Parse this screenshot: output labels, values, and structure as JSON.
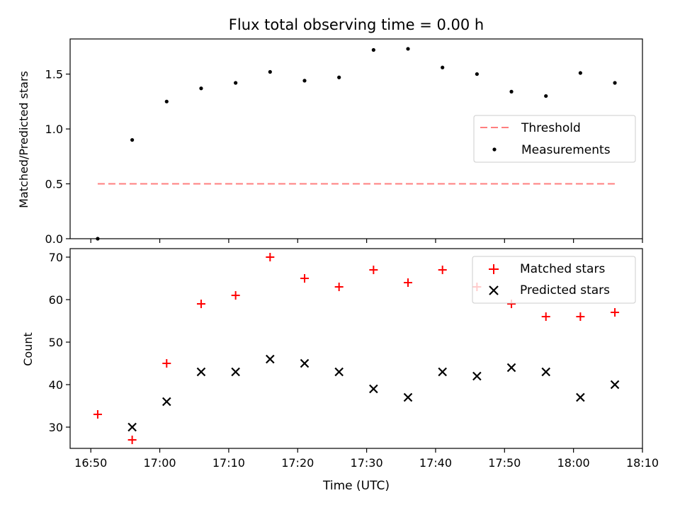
{
  "chart_data": [
    {
      "type": "scatter",
      "title": "Flux total observing time = 0.00 h",
      "ylabel": "Matched/Predicted stars",
      "ylim": [
        0,
        1.82
      ],
      "yticks": [
        0.0,
        0.5,
        1.0,
        1.5
      ],
      "ytick_labels": [
        "0.0",
        "0.5",
        "1.0",
        "1.5"
      ],
      "x": [
        "16:51",
        "16:56",
        "17:01",
        "17:06",
        "17:11",
        "17:16",
        "17:21",
        "17:26",
        "17:31",
        "17:36",
        "17:41",
        "17:46",
        "17:51",
        "17:56",
        "18:01",
        "18:06"
      ],
      "series": [
        {
          "name": "Measurements",
          "kind": "scatter",
          "marker": "dot",
          "color": "#000000",
          "values": [
            0.0,
            0.9,
            1.25,
            1.37,
            1.42,
            1.52,
            1.44,
            1.47,
            1.72,
            1.73,
            1.56,
            1.5,
            1.34,
            1.3,
            1.51,
            1.42
          ]
        },
        {
          "name": "Threshold",
          "kind": "line",
          "style": "dashed",
          "color": "#ff7f7f",
          "x_range": [
            "16:51",
            "18:06"
          ],
          "value": 0.5
        }
      ],
      "legend": {
        "placement": "center-right",
        "entries": [
          "Threshold",
          "Measurements"
        ]
      }
    },
    {
      "type": "scatter",
      "xlabel": "Time (UTC)",
      "ylabel": "Count",
      "ylim": [
        25,
        72
      ],
      "yticks": [
        30,
        40,
        50,
        60,
        70
      ],
      "ytick_labels": [
        "30",
        "40",
        "50",
        "60",
        "70"
      ],
      "xlim": [
        "16:47",
        "18:10"
      ],
      "xticks": [
        "16:50",
        "17:00",
        "17:10",
        "17:20",
        "17:30",
        "17:40",
        "17:50",
        "18:00",
        "18:10"
      ],
      "x": [
        "16:51",
        "16:56",
        "17:01",
        "17:06",
        "17:11",
        "17:16",
        "17:21",
        "17:26",
        "17:31",
        "17:36",
        "17:41",
        "17:46",
        "17:51",
        "17:56",
        "18:01",
        "18:06"
      ],
      "series": [
        {
          "name": "Matched stars",
          "marker": "plus",
          "color": "#ff0000",
          "values": [
            33,
            27,
            45,
            59,
            61,
            70,
            65,
            63,
            67,
            64,
            67,
            63,
            59,
            56,
            56,
            57
          ]
        },
        {
          "name": "Predicted stars",
          "marker": "cross",
          "color": "#000000",
          "values": [
            null,
            30,
            36,
            43,
            43,
            46,
            45,
            43,
            39,
            37,
            43,
            42,
            44,
            43,
            37,
            40
          ]
        }
      ],
      "legend": {
        "placement": "top-right",
        "entries": [
          "Matched stars",
          "Predicted stars"
        ]
      }
    }
  ]
}
